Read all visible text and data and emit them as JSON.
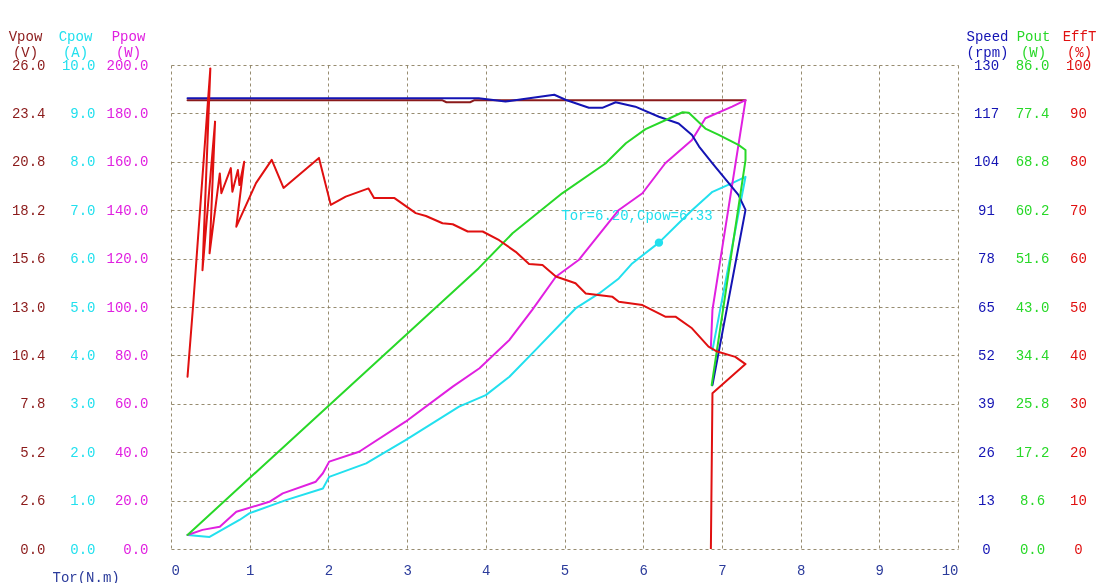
{
  "chart_data": [
    {
      "type": "line",
      "xlabel": "Tor(N.m)",
      "ylabel": "Vpow (V)",
      "y2label": "Cpow (A)",
      "y3label": "Ppow (W)",
      "xlim": [
        0,
        10
      ],
      "xticks": [
        0,
        1,
        2,
        3,
        4,
        5,
        6,
        7,
        8,
        9,
        10
      ],
      "ylim": [
        0,
        26
      ],
      "yticks": [
        {
          "value": 0,
          "label": "0.0"
        },
        2.6,
        5.2,
        7.8,
        10.4,
        {
          "value": 13,
          "label": "13.0"
        },
        15.6,
        18.2,
        20.8,
        23.4,
        {
          "value": 26,
          "label": "26.0"
        }
      ],
      "y2lim": [
        0,
        10
      ],
      "y2ticks": [
        {
          "value": 0,
          "label": "0.0"
        },
        {
          "value": 1,
          "label": "1.0"
        },
        {
          "value": 2,
          "label": "2.0"
        },
        {
          "value": 3,
          "label": "3.0"
        },
        {
          "value": 4,
          "label": "4.0"
        },
        {
          "value": 5,
          "label": "5.0"
        },
        {
          "value": 6,
          "label": "6.0"
        },
        {
          "value": 7,
          "label": "7.0"
        },
        {
          "value": 8,
          "label": "8.0"
        },
        {
          "value": 9,
          "label": "9.0"
        },
        {
          "value": 10,
          "label": "10.0"
        }
      ],
      "y3lim": [
        0,
        200
      ],
      "y3ticks": [
        {
          "value": 0,
          "label": "0.0"
        },
        {
          "value": 20,
          "label": "20.0"
        },
        {
          "value": 40,
          "label": "40.0"
        },
        {
          "value": 60,
          "label": "60.0"
        },
        {
          "value": 80,
          "label": "80.0"
        },
        {
          "value": 100,
          "label": "100.0"
        },
        {
          "value": 120,
          "label": "120.0"
        },
        {
          "value": 140,
          "label": "140.0"
        },
        {
          "value": 160,
          "label": "160.0"
        },
        {
          "value": 180,
          "label": "180.0"
        },
        {
          "value": 200,
          "label": "200.0"
        }
      ],
      "grid": true,
      "marker": "none",
      "line_style": "solid",
      "annotations": [
        "Tor=6.20,Cpow=6.33"
      ],
      "series": [
        {
          "color": "#8b1a1a",
          "x": [
            0.21,
            3.45,
            3.5,
            3.8,
            3.85,
            7.3
          ],
          "values": [
            24.1,
            24.1,
            24.0,
            24.0,
            24.1,
            24.1
          ]
        },
        {
          "axis": "y2",
          "color": "#22e0ee",
          "x": [
            0.21,
            0.49,
            0.87,
            1.0,
            1.46,
            1.93,
            2.01,
            2.48,
            2.98,
            3.66,
            4.0,
            4.3,
            4.63,
            5.14,
            5.44,
            5.69,
            5.86,
            6.2,
            6.45,
            6.62,
            6.88,
            7.13,
            7.3,
            6.88
          ],
          "values": [
            0.29,
            0.25,
            0.6,
            0.74,
            1.01,
            1.25,
            1.49,
            1.77,
            2.25,
            2.94,
            3.18,
            3.56,
            4.11,
            4.97,
            5.28,
            5.59,
            5.9,
            6.33,
            6.73,
            7.0,
            7.38,
            7.56,
            7.69,
            4.11
          ]
        },
        {
          "axis": "y3",
          "color": "#e020e0",
          "x": [
            0.21,
            0.4,
            0.62,
            0.83,
            1.25,
            1.42,
            1.84,
            1.93,
            2.01,
            2.39,
            2.98,
            3.58,
            3.92,
            4.3,
            4.59,
            4.89,
            5.18,
            5.69,
            5.99,
            6.28,
            6.62,
            6.79,
            7.13,
            7.3,
            6.88,
            6.86
          ],
          "values": [
            5.8,
            7.9,
            9.2,
            15.4,
            19.5,
            23.0,
            27.8,
            31.3,
            36.1,
            40.2,
            52.6,
            67.1,
            74.7,
            86.4,
            98.8,
            112.5,
            119.4,
            140.1,
            147.0,
            159.4,
            169.0,
            178.0,
            182.8,
            185.5,
            98.8,
            83.6
          ]
        },
        {
          "type": "scatter",
          "axis": "y2",
          "color": "#22e0ee",
          "marker": "circle",
          "x": [
            6.2
          ],
          "values": [
            6.33
          ]
        }
      ]
    },
    {
      "type": "line",
      "ylabel": "Speed (rpm)",
      "y2label": "Pout (W)",
      "y3label": "EffT (%)",
      "tick_labels": "y",
      "xlim": [
        0,
        10
      ],
      "xticks": [
        0,
        1,
        2,
        3,
        4,
        5,
        6,
        7,
        8,
        9,
        10
      ],
      "ylim": [
        0,
        130
      ],
      "yticks": [
        0,
        13,
        26,
        39,
        52,
        65,
        78,
        91,
        104,
        117,
        130
      ],
      "y2lim": [
        0,
        86
      ],
      "y2ticks": [
        {
          "value": 0,
          "label": "0.0"
        },
        8.6,
        17.2,
        25.8,
        34.4,
        {
          "value": 43,
          "label": "43.0"
        },
        51.6,
        60.2,
        68.8,
        77.4,
        {
          "value": 86,
          "label": "86.0"
        }
      ],
      "y3lim": [
        0,
        100
      ],
      "y3ticks": [
        0,
        10,
        20,
        30,
        40,
        50,
        60,
        70,
        80,
        90,
        100
      ],
      "marker": "none",
      "line_style": "solid",
      "series": [
        {
          "color": "#1414b4",
          "x": [
            0.21,
            3.91,
            4.25,
            4.46,
            4.87,
            5.02,
            5.31,
            5.48,
            5.65,
            5.9,
            6.2,
            6.45,
            6.62,
            6.71,
            6.88,
            7.21,
            7.3,
            7.3,
            6.88
          ],
          "values": [
            121.1,
            121.1,
            120.2,
            120.8,
            122.0,
            120.6,
            118.5,
            118.5,
            120.0,
            118.8,
            116.1,
            114.3,
            111.2,
            108.1,
            103.6,
            95.1,
            91.1,
            91.1,
            44.0
          ]
        },
        {
          "axis": "y2",
          "color": "#28d828",
          "x": [
            0.21,
            3.91,
            4.34,
            4.97,
            5.52,
            5.78,
            6.03,
            6.33,
            6.5,
            6.58,
            6.79,
            6.96,
            7.21,
            7.3,
            7.3,
            6.87
          ],
          "values": [
            2.5,
            49.9,
            56.1,
            63.2,
            68.5,
            72.1,
            74.6,
            76.5,
            77.6,
            77.5,
            74.7,
            73.6,
            71.8,
            70.9,
            69.1,
            29.1
          ]
        },
        {
          "axis": "y3",
          "color": "#e01010",
          "x": [
            0.21,
            0.28,
            0.5,
            0.4,
            0.56,
            0.49,
            0.62,
            0.64,
            0.76,
            0.78,
            0.85,
            0.87,
            0.93,
            0.83,
            1.08,
            1.28,
            1.43,
            1.88,
            2.03,
            2.22,
            2.51,
            2.58,
            2.84,
            3.11,
            3.24,
            3.45,
            3.58,
            3.77,
            3.96,
            4.17,
            4.38,
            4.55,
            4.72,
            4.89,
            5.14,
            5.27,
            5.61,
            5.69,
            5.99,
            6.28,
            6.41,
            6.62,
            6.83,
            6.94,
            7.17,
            7.3,
            6.88,
            6.86
          ],
          "values": [
            35.6,
            50.1,
            99.3,
            57.6,
            88.3,
            61.1,
            77.6,
            73.5,
            78.7,
            73.8,
            78.3,
            75.2,
            80.0,
            66.6,
            75.6,
            80.4,
            74.6,
            80.8,
            71.1,
            72.8,
            74.5,
            72.5,
            72.5,
            69.4,
            68.8,
            67.3,
            67.1,
            65.6,
            65.6,
            63.8,
            61.4,
            58.9,
            58.7,
            56.3,
            54.9,
            52.8,
            52.1,
            51.1,
            50.4,
            48.0,
            48.0,
            45.6,
            41.8,
            40.8,
            39.7,
            38.2,
            32.2,
            0
          ]
        }
      ]
    }
  ]
}
